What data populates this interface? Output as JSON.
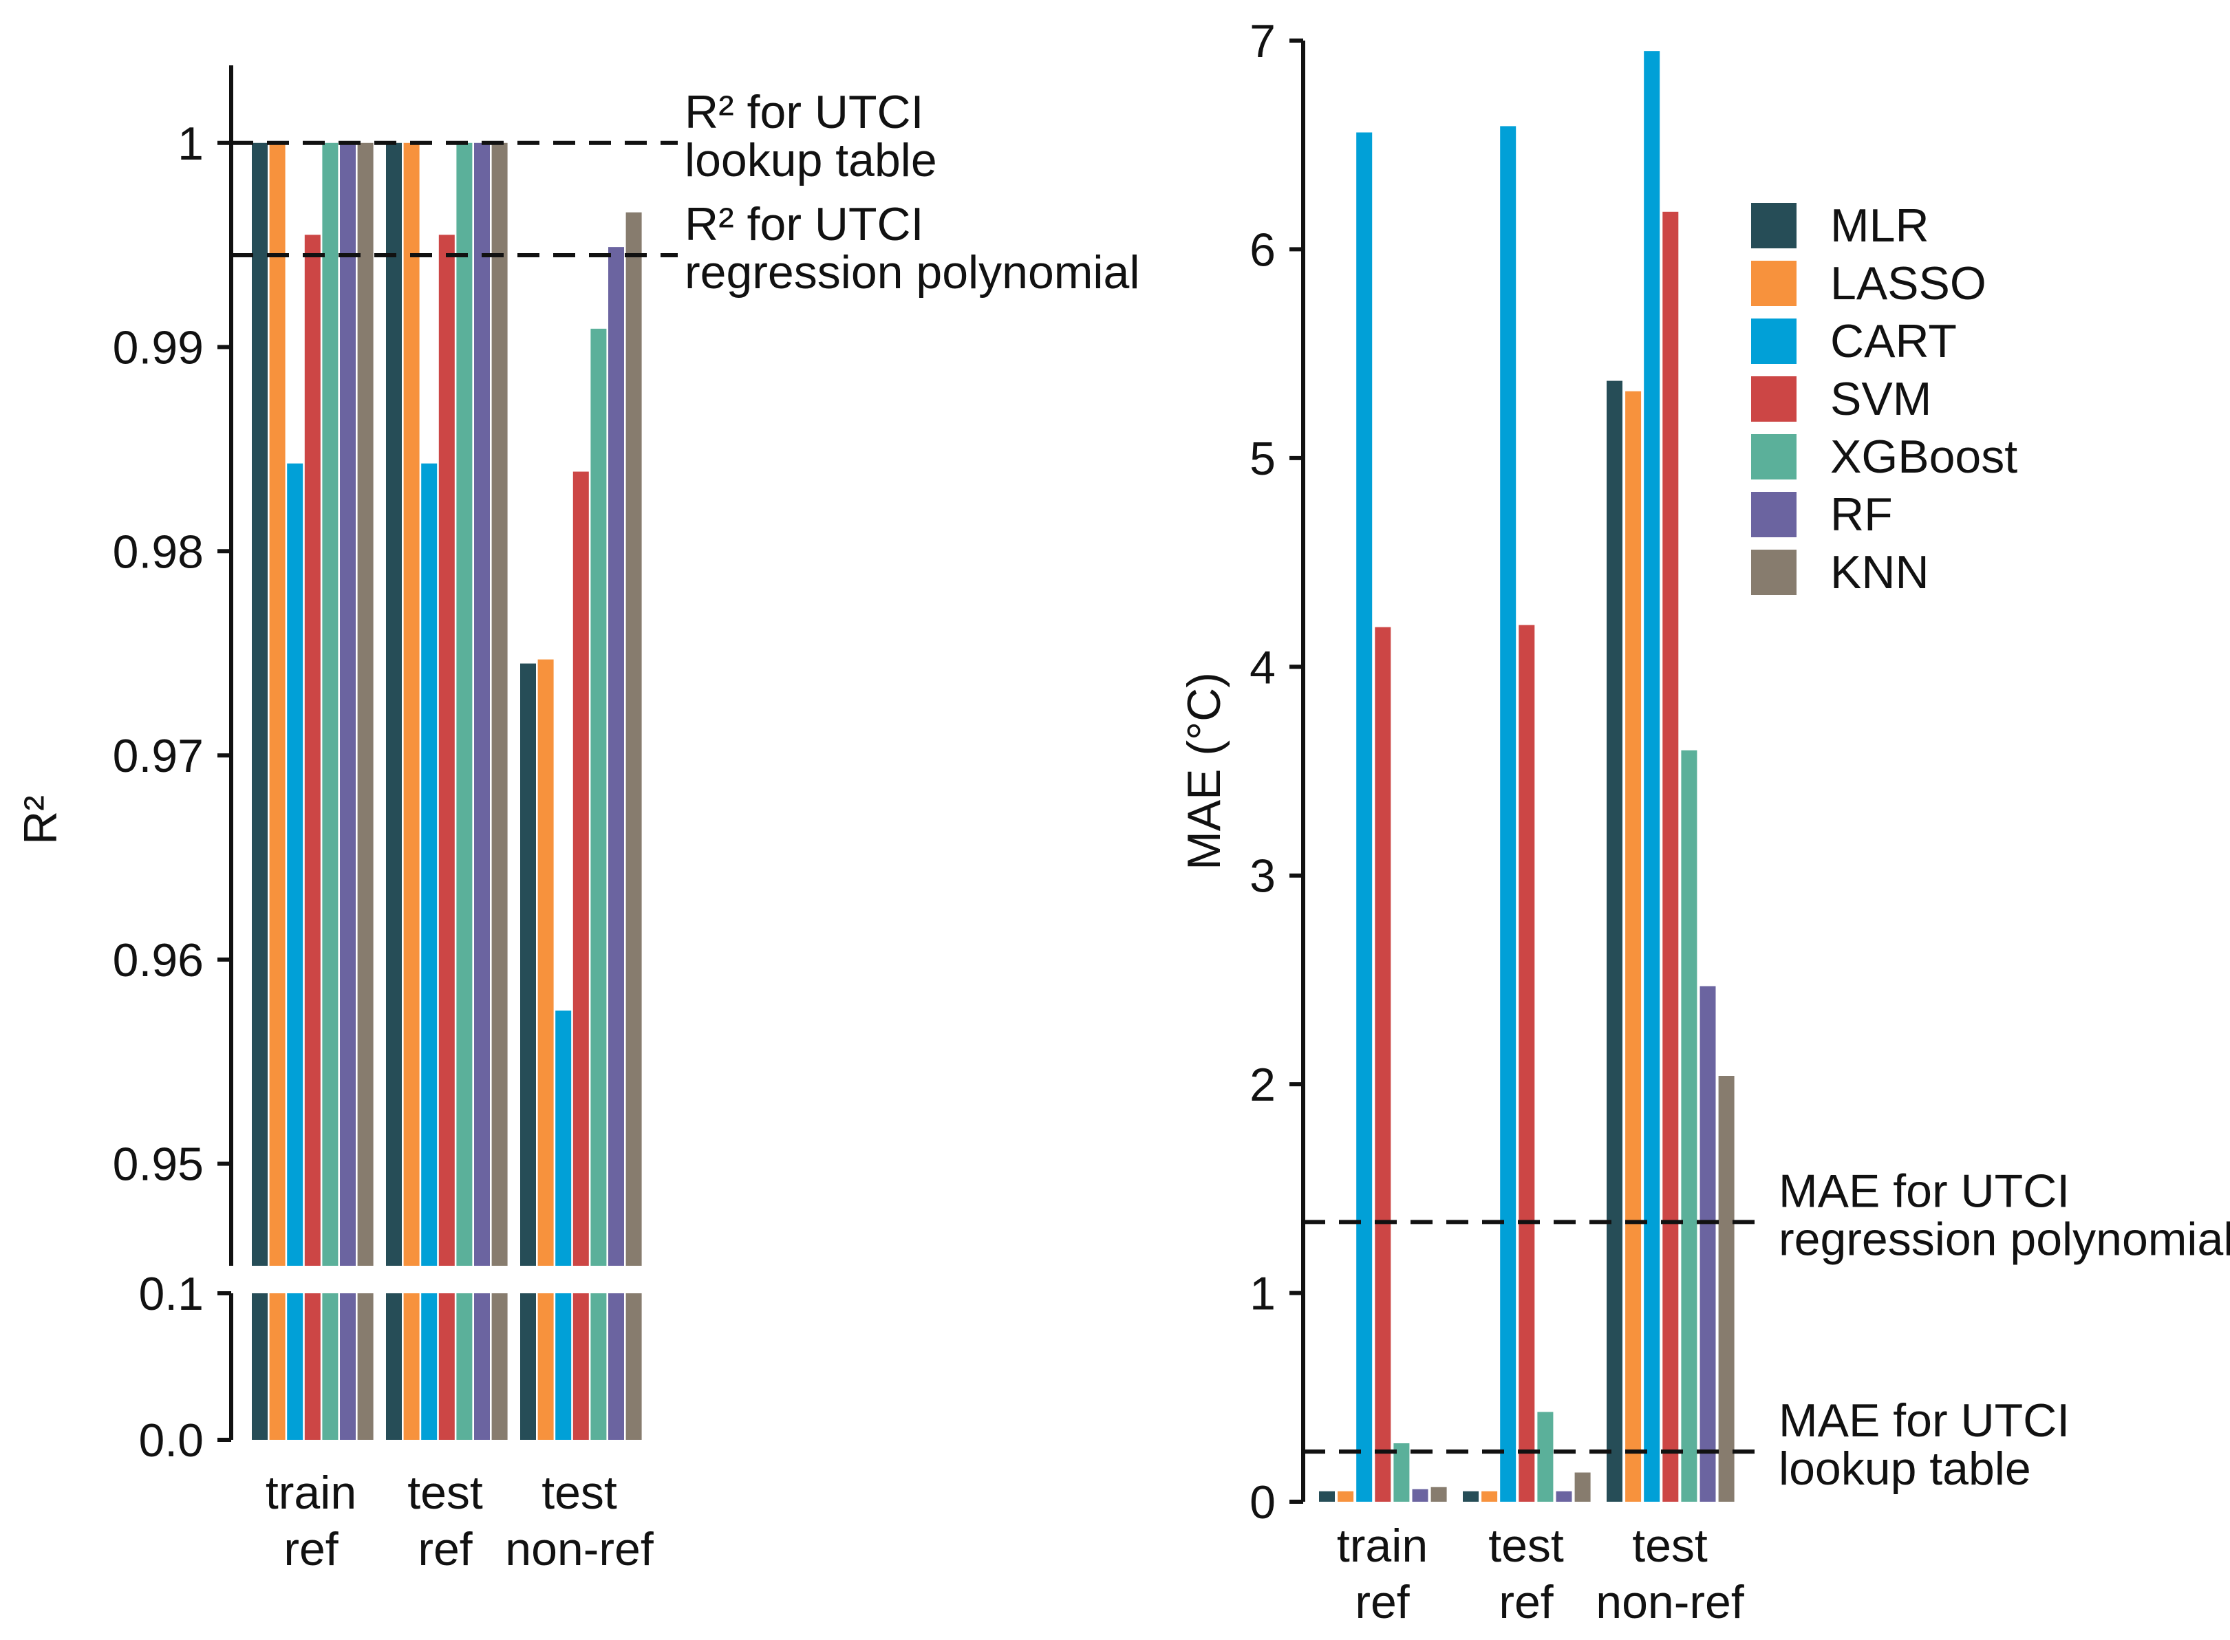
{
  "colors": {
    "MLR": "#264d57",
    "LASSO": "#f7923d",
    "CART": "#01a0d7",
    "SVM": "#cc4645",
    "XGBoost": "#5bb09a",
    "RF": "#6b64a0",
    "KNN": "#877c6e",
    "axis": "#111111"
  },
  "legend": {
    "items": [
      "MLR",
      "LASSO",
      "CART",
      "SVM",
      "XGBoost",
      "RF",
      "KNN"
    ]
  },
  "chart_data": [
    {
      "type": "bar",
      "title": "",
      "ylabel": "R²",
      "xlabel": "",
      "categories": [
        [
          "train",
          "ref"
        ],
        [
          "test",
          "ref"
        ],
        [
          "test",
          "non-ref"
        ]
      ],
      "upper_ylim": [
        0.945,
        1.0038
      ],
      "upper_ticks": [
        "0.95",
        "0.96",
        "0.97",
        "0.98",
        "0.99",
        "1"
      ],
      "lower_ylim": [
        0.0,
        0.1
      ],
      "lower_ticks": [
        "0.0",
        "0.1"
      ],
      "axis_break": true,
      "series": [
        {
          "name": "MLR",
          "values": [
            1.0,
            1.0,
            0.9745
          ]
        },
        {
          "name": "LASSO",
          "values": [
            1.0,
            1.0,
            0.9747
          ]
        },
        {
          "name": "CART",
          "values": [
            0.9843,
            0.9843,
            0.9575
          ]
        },
        {
          "name": "SVM",
          "values": [
            0.9955,
            0.9955,
            0.9839
          ]
        },
        {
          "name": "XGBoost",
          "values": [
            1.0,
            1.0,
            0.9909
          ]
        },
        {
          "name": "RF",
          "values": [
            1.0,
            1.0,
            0.9949
          ]
        },
        {
          "name": "KNN",
          "values": [
            1.0,
            1.0,
            0.9966
          ]
        }
      ],
      "reference_lines": [
        {
          "value": 1.0,
          "label": [
            "R² for UTCI",
            "lookup table"
          ]
        },
        {
          "value": 0.9945,
          "label": [
            "R² for UTCI",
            "regression polynomial"
          ]
        }
      ]
    },
    {
      "type": "bar",
      "title": "",
      "ylabel": "MAE (°C)",
      "xlabel": "",
      "categories": [
        [
          "train",
          "ref"
        ],
        [
          "test",
          "ref"
        ],
        [
          "test",
          "non-ref"
        ]
      ],
      "ylim": [
        0,
        7
      ],
      "ticks": [
        "0",
        "1",
        "2",
        "3",
        "4",
        "5",
        "6",
        "7"
      ],
      "series": [
        {
          "name": "MLR",
          "values": [
            0.05,
            0.05,
            5.37
          ]
        },
        {
          "name": "LASSO",
          "values": [
            0.05,
            0.05,
            5.32
          ]
        },
        {
          "name": "CART",
          "values": [
            6.56,
            6.59,
            6.95
          ]
        },
        {
          "name": "SVM",
          "values": [
            4.19,
            4.2,
            6.18
          ]
        },
        {
          "name": "XGBoost",
          "values": [
            0.28,
            0.43,
            3.6
          ]
        },
        {
          "name": "RF",
          "values": [
            0.06,
            0.05,
            2.47
          ]
        },
        {
          "name": "KNN",
          "values": [
            0.07,
            0.14,
            2.04
          ]
        }
      ],
      "reference_lines": [
        {
          "value": 1.34,
          "label": [
            "MAE for UTCI",
            "regression polynomial"
          ]
        },
        {
          "value": 0.24,
          "label": [
            "MAE for UTCI",
            "lookup table"
          ]
        }
      ]
    }
  ]
}
